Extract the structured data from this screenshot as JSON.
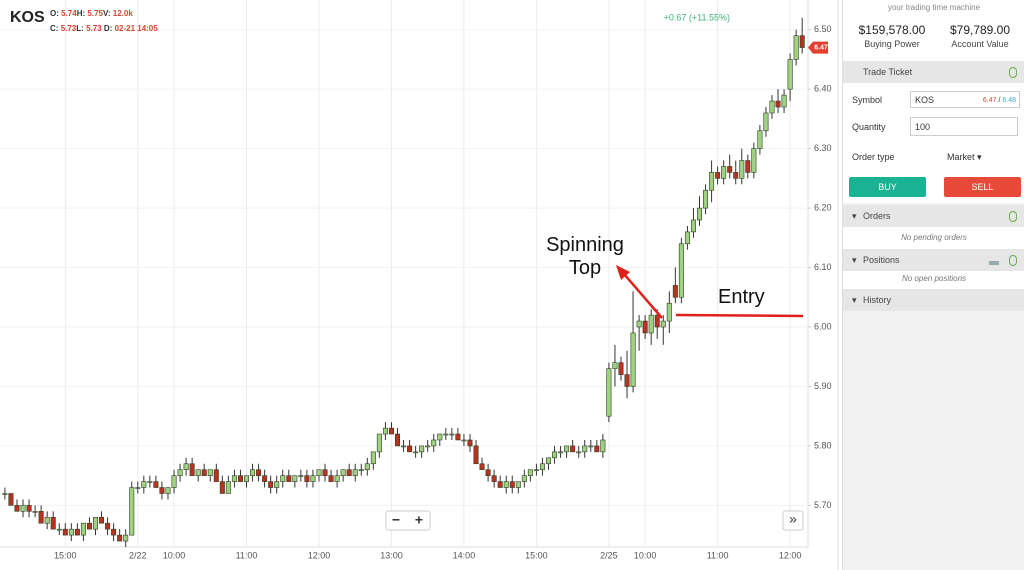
{
  "quote": {
    "symbol": "KOS",
    "o_label": "O:",
    "o": "5.74",
    "h_label": "H:",
    "h": "5.75",
    "v_label": "V:",
    "v": "12.0k",
    "c_label": "C:",
    "c": "5.73",
    "l_label": "L:",
    "l": "5.73",
    "d_label": "D:",
    "d": "02-21 14:05"
  },
  "chart_data": {
    "type": "candlestick",
    "change": "+0.67 (+11.55%)",
    "last_price": 6.47,
    "annotations": [
      "Spinning Top",
      "Entry"
    ],
    "up_color": "#9fd27f",
    "down_color": "#b8321f",
    "grid": true,
    "ylim": [
      5.63,
      6.55
    ],
    "yticks": [
      {
        "value": 5.7,
        "label": "5.70"
      },
      {
        "value": 5.8,
        "label": "5.80"
      },
      {
        "value": 5.9,
        "label": "5.90"
      },
      {
        "value": 6,
        "label": "6.00"
      },
      {
        "value": 6.1,
        "label": "6.10"
      },
      {
        "value": 6.2,
        "label": "6.20"
      },
      {
        "value": 6.3,
        "label": "6.30"
      },
      {
        "value": 6.4,
        "label": "6.40"
      },
      {
        "value": 6.5,
        "label": "6.50"
      }
    ],
    "categories": [
      null,
      null,
      null,
      null,
      null,
      null,
      null,
      null,
      null,
      null,
      "15:00",
      null,
      null,
      null,
      null,
      null,
      null,
      null,
      null,
      null,
      null,
      null,
      "2/22",
      null,
      null,
      null,
      null,
      null,
      "10:00",
      null,
      null,
      null,
      null,
      null,
      null,
      null,
      null,
      null,
      null,
      null,
      "11:00",
      null,
      null,
      null,
      null,
      null,
      null,
      null,
      null,
      null,
      null,
      null,
      "12:00",
      null,
      null,
      null,
      null,
      null,
      null,
      null,
      null,
      null,
      null,
      null,
      "13:00",
      null,
      null,
      null,
      null,
      null,
      null,
      null,
      null,
      null,
      null,
      null,
      "14:00",
      null,
      null,
      null,
      null,
      null,
      null,
      null,
      null,
      null,
      null,
      null,
      "15:00",
      null,
      null,
      null,
      null,
      null,
      null,
      null,
      null,
      null,
      null,
      null,
      "2/25",
      null,
      null,
      null,
      null,
      null,
      "10:00",
      null,
      null,
      null,
      null,
      null,
      null,
      null,
      null,
      null,
      null,
      null,
      "11:00",
      null,
      null,
      null,
      null,
      null,
      null,
      null,
      null,
      null,
      null,
      null,
      "12:00",
      null,
      null
    ],
    "ohlc": [
      [
        5.72,
        5.73,
        5.71,
        5.72
      ],
      [
        5.72,
        5.72,
        5.7,
        5.7
      ],
      [
        5.7,
        5.71,
        5.69,
        5.69
      ],
      [
        5.69,
        5.71,
        5.68,
        5.7
      ],
      [
        5.7,
        5.71,
        5.68,
        5.69
      ],
      [
        5.69,
        5.7,
        5.68,
        5.69
      ],
      [
        5.69,
        5.7,
        5.67,
        5.67
      ],
      [
        5.67,
        5.69,
        5.66,
        5.68
      ],
      [
        5.68,
        5.69,
        5.66,
        5.66
      ],
      [
        5.66,
        5.67,
        5.65,
        5.66
      ],
      [
        5.66,
        5.67,
        5.65,
        5.65
      ],
      [
        5.65,
        5.67,
        5.64,
        5.66
      ],
      [
        5.66,
        5.67,
        5.65,
        5.65
      ],
      [
        5.65,
        5.67,
        5.64,
        5.67
      ],
      [
        5.67,
        5.68,
        5.66,
        5.66
      ],
      [
        5.66,
        5.68,
        5.65,
        5.68
      ],
      [
        5.68,
        5.69,
        5.67,
        5.67
      ],
      [
        5.67,
        5.68,
        5.65,
        5.66
      ],
      [
        5.66,
        5.67,
        5.64,
        5.65
      ],
      [
        5.65,
        5.66,
        5.64,
        5.64
      ],
      [
        5.64,
        5.66,
        5.63,
        5.65
      ],
      [
        5.65,
        5.74,
        5.65,
        5.73
      ],
      [
        5.73,
        5.74,
        5.72,
        5.73
      ],
      [
        5.73,
        5.75,
        5.72,
        5.74
      ],
      [
        5.74,
        5.75,
        5.73,
        5.74
      ],
      [
        5.74,
        5.75,
        5.73,
        5.73
      ],
      [
        5.73,
        5.74,
        5.71,
        5.72
      ],
      [
        5.72,
        5.73,
        5.71,
        5.73
      ],
      [
        5.73,
        5.76,
        5.72,
        5.75
      ],
      [
        5.75,
        5.77,
        5.74,
        5.76
      ],
      [
        5.76,
        5.78,
        5.75,
        5.77
      ],
      [
        5.77,
        5.78,
        5.75,
        5.75
      ],
      [
        5.75,
        5.76,
        5.74,
        5.76
      ],
      [
        5.76,
        5.77,
        5.75,
        5.75
      ],
      [
        5.75,
        5.76,
        5.74,
        5.76
      ],
      [
        5.76,
        5.77,
        5.74,
        5.74
      ],
      [
        5.74,
        5.75,
        5.72,
        5.72
      ],
      [
        5.72,
        5.75,
        5.72,
        5.74
      ],
      [
        5.74,
        5.76,
        5.73,
        5.75
      ],
      [
        5.75,
        5.76,
        5.74,
        5.74
      ],
      [
        5.74,
        5.75,
        5.73,
        5.75
      ],
      [
        5.75,
        5.77,
        5.74,
        5.76
      ],
      [
        5.76,
        5.77,
        5.74,
        5.75
      ],
      [
        5.75,
        5.76,
        5.73,
        5.74
      ],
      [
        5.74,
        5.75,
        5.72,
        5.73
      ],
      [
        5.73,
        5.75,
        5.72,
        5.74
      ],
      [
        5.74,
        5.76,
        5.73,
        5.75
      ],
      [
        5.75,
        5.76,
        5.74,
        5.74
      ],
      [
        5.74,
        5.75,
        5.73,
        5.75
      ],
      [
        5.75,
        5.76,
        5.74,
        5.75
      ],
      [
        5.75,
        5.76,
        5.73,
        5.74
      ],
      [
        5.74,
        5.76,
        5.73,
        5.75
      ],
      [
        5.75,
        5.76,
        5.74,
        5.76
      ],
      [
        5.76,
        5.77,
        5.74,
        5.75
      ],
      [
        5.75,
        5.76,
        5.74,
        5.74
      ],
      [
        5.74,
        5.76,
        5.73,
        5.75
      ],
      [
        5.75,
        5.76,
        5.74,
        5.76
      ],
      [
        5.76,
        5.77,
        5.75,
        5.75
      ],
      [
        5.75,
        5.77,
        5.74,
        5.76
      ],
      [
        5.76,
        5.77,
        5.75,
        5.76
      ],
      [
        5.76,
        5.78,
        5.75,
        5.77
      ],
      [
        5.77,
        5.79,
        5.76,
        5.79
      ],
      [
        5.79,
        5.82,
        5.78,
        5.82
      ],
      [
        5.82,
        5.84,
        5.81,
        5.83
      ],
      [
        5.83,
        5.84,
        5.82,
        5.82
      ],
      [
        5.82,
        5.83,
        5.8,
        5.8
      ],
      [
        5.8,
        5.81,
        5.79,
        5.8
      ],
      [
        5.8,
        5.81,
        5.79,
        5.79
      ],
      [
        5.79,
        5.8,
        5.78,
        5.79
      ],
      [
        5.79,
        5.8,
        5.78,
        5.8
      ],
      [
        5.8,
        5.81,
        5.79,
        5.8
      ],
      [
        5.8,
        5.82,
        5.79,
        5.81
      ],
      [
        5.81,
        5.82,
        5.8,
        5.82
      ],
      [
        5.82,
        5.83,
        5.81,
        5.82
      ],
      [
        5.82,
        5.83,
        5.81,
        5.82
      ],
      [
        5.82,
        5.83,
        5.81,
        5.81
      ],
      [
        5.81,
        5.82,
        5.8,
        5.81
      ],
      [
        5.81,
        5.82,
        5.79,
        5.8
      ],
      [
        5.8,
        5.81,
        5.77,
        5.77
      ],
      [
        5.77,
        5.78,
        5.76,
        5.76
      ],
      [
        5.76,
        5.77,
        5.74,
        5.75
      ],
      [
        5.75,
        5.76,
        5.73,
        5.74
      ],
      [
        5.74,
        5.75,
        5.73,
        5.73
      ],
      [
        5.73,
        5.75,
        5.72,
        5.74
      ],
      [
        5.74,
        5.75,
        5.72,
        5.73
      ],
      [
        5.73,
        5.74,
        5.72,
        5.74
      ],
      [
        5.74,
        5.76,
        5.73,
        5.75
      ],
      [
        5.75,
        5.76,
        5.74,
        5.76
      ],
      [
        5.76,
        5.77,
        5.75,
        5.76
      ],
      [
        5.76,
        5.78,
        5.75,
        5.77
      ],
      [
        5.77,
        5.78,
        5.76,
        5.78
      ],
      [
        5.78,
        5.8,
        5.77,
        5.79
      ],
      [
        5.79,
        5.8,
        5.78,
        5.79
      ],
      [
        5.79,
        5.8,
        5.78,
        5.8
      ],
      [
        5.8,
        5.81,
        5.79,
        5.79
      ],
      [
        5.79,
        5.8,
        5.78,
        5.79
      ],
      [
        5.79,
        5.81,
        5.78,
        5.8
      ],
      [
        5.8,
        5.81,
        5.79,
        5.8
      ],
      [
        5.8,
        5.81,
        5.79,
        5.79
      ],
      [
        5.79,
        5.82,
        5.78,
        5.81
      ],
      [
        5.85,
        5.94,
        5.84,
        5.93
      ],
      [
        5.93,
        5.97,
        5.9,
        5.94
      ],
      [
        5.94,
        5.95,
        5.91,
        5.92
      ],
      [
        5.92,
        5.96,
        5.88,
        5.9
      ],
      [
        5.9,
        6.06,
        5.89,
        5.99
      ],
      [
        6.0,
        6.02,
        5.96,
        6.01
      ],
      [
        6.01,
        6.02,
        5.98,
        5.99
      ],
      [
        5.99,
        6.03,
        5.97,
        6.02
      ],
      [
        6.02,
        6.03,
        5.98,
        6.0
      ],
      [
        6.0,
        6.02,
        5.97,
        6.01
      ],
      [
        6.01,
        6.06,
        5.99,
        6.04
      ],
      [
        6.07,
        6.1,
        6.04,
        6.05
      ],
      [
        6.05,
        6.15,
        6.04,
        6.14
      ],
      [
        6.14,
        6.17,
        6.13,
        6.16
      ],
      [
        6.16,
        6.2,
        6.15,
        6.18
      ],
      [
        6.18,
        6.22,
        6.17,
        6.2
      ],
      [
        6.2,
        6.24,
        6.19,
        6.23
      ],
      [
        6.23,
        6.28,
        6.21,
        6.26
      ],
      [
        6.26,
        6.27,
        6.24,
        6.25
      ],
      [
        6.25,
        6.28,
        6.24,
        6.27
      ],
      [
        6.27,
        6.29,
        6.25,
        6.26
      ],
      [
        6.26,
        6.28,
        6.24,
        6.25
      ],
      [
        6.25,
        6.3,
        6.24,
        6.28
      ],
      [
        6.28,
        6.29,
        6.25,
        6.26
      ],
      [
        6.26,
        6.31,
        6.25,
        6.3
      ],
      [
        6.3,
        6.34,
        6.29,
        6.33
      ],
      [
        6.33,
        6.37,
        6.32,
        6.36
      ],
      [
        6.36,
        6.39,
        6.35,
        6.38
      ],
      [
        6.38,
        6.4,
        6.36,
        6.37
      ],
      [
        6.37,
        6.4,
        6.36,
        6.39
      ],
      [
        6.4,
        6.46,
        6.38,
        6.45
      ],
      [
        6.45,
        6.5,
        6.44,
        6.49
      ],
      [
        6.49,
        6.52,
        6.46,
        6.47
      ]
    ]
  },
  "controls": {
    "zoom_out": "−",
    "zoom_in": "+",
    "scroll_end": "»"
  },
  "sidebar": {
    "tagline": "your trading time machine",
    "buying_power": "$159,578.00",
    "buying_power_label": "Buying Power",
    "account_value": "$79,789.00",
    "account_value_label": "Account Value",
    "trade_ticket": "Trade Ticket",
    "symbol_label": "Symbol",
    "symbol": "KOS",
    "bid": "6.47",
    "separator": "/",
    "ask": "6.48",
    "quantity_label": "Quantity",
    "quantity": "100",
    "order_type_label": "Order type",
    "order_type": "Market",
    "buy": "BUY",
    "sell": "SELL",
    "orders": "Orders",
    "orders_empty": "No pending orders",
    "positions": "Positions",
    "positions_empty": "No open positions",
    "history": "History"
  }
}
